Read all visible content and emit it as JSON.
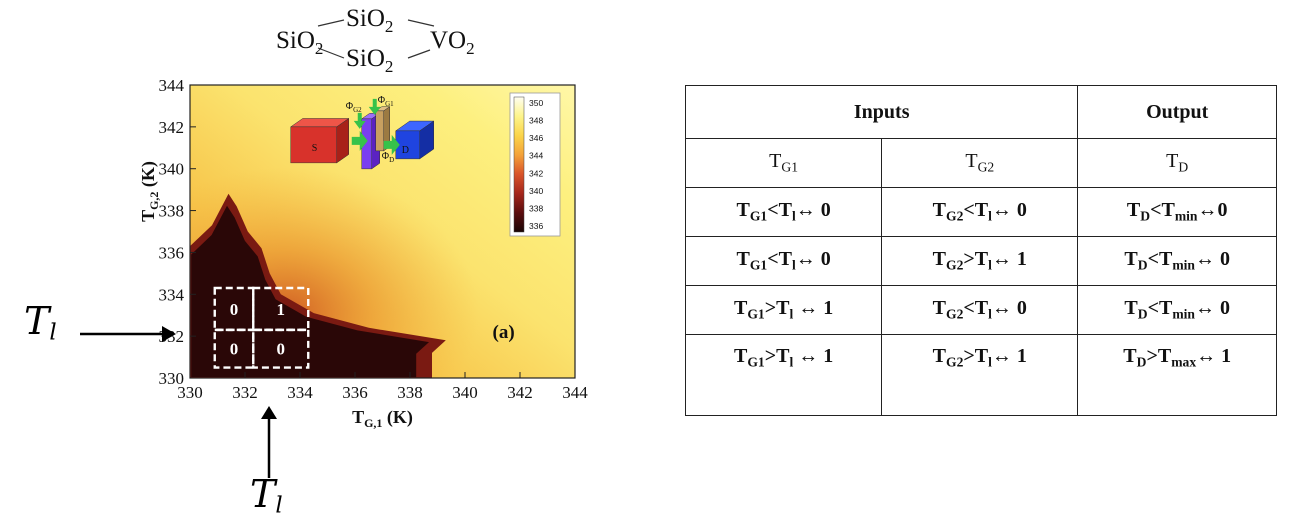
{
  "formula": {
    "top": "SiO",
    "top_sub": "2",
    "left": "SiO",
    "left_sub": "2",
    "bottom": "SiO",
    "bottom_sub": "2",
    "right": "VO",
    "right_sub": "2"
  },
  "chart_data": {
    "type": "heatmap",
    "xlabel": "T",
    "xlabel_sub": "G,1",
    "xlabel_unit": " (K)",
    "ylabel": "T",
    "ylabel_sub": "G,2",
    "ylabel_unit": " (K)",
    "xlim": [
      330,
      344
    ],
    "ylim": [
      330,
      344
    ],
    "x_ticks": [
      "330",
      "332",
      "334",
      "336",
      "338",
      "340",
      "342",
      "344"
    ],
    "y_ticks": [
      "330",
      "332",
      "334",
      "336",
      "338",
      "340",
      "342",
      "344"
    ],
    "panel_label": "(a)",
    "colorbar": {
      "ticks": [
        "350",
        "348",
        "346",
        "344",
        "342",
        "340",
        "338",
        "336"
      ],
      "colors": [
        "#fffef2",
        "#fdf48a",
        "#fbd44a",
        "#f4a23a",
        "#d9542a",
        "#a5261c",
        "#5b0d0e",
        "#190404"
      ]
    },
    "low_region": [
      [
        330,
        330
      ],
      [
        338.8,
        330
      ],
      [
        338.8,
        331.2
      ],
      [
        339.3,
        331.8
      ],
      [
        336.5,
        332.4
      ],
      [
        334.5,
        333.1
      ],
      [
        333.3,
        334.0
      ],
      [
        332.9,
        335.0
      ],
      [
        332.6,
        336.2
      ],
      [
        332.1,
        337.0
      ],
      [
        331.7,
        338.2
      ],
      [
        331.4,
        338.8
      ],
      [
        330.8,
        337.3
      ],
      [
        330,
        336.3
      ]
    ],
    "gates": [
      {
        "x": [
          330.9,
          332.3
        ],
        "y": [
          332.3,
          334.3
        ],
        "value": "0"
      },
      {
        "x": [
          332.3,
          334.3
        ],
        "y": [
          332.3,
          334.3
        ],
        "value": "1"
      },
      {
        "x": [
          330.9,
          332.3
        ],
        "y": [
          330.5,
          332.3
        ],
        "value": "0"
      },
      {
        "x": [
          332.3,
          334.3
        ],
        "y": [
          330.5,
          332.3
        ],
        "value": "0"
      }
    ],
    "inset": {
      "source": "S",
      "drain": "D",
      "gate1_label": "Φ",
      "gate1_sub": "G1",
      "gate2_label": "Φ",
      "gate2_sub": "G2",
      "drain_flux_label": "Φ",
      "drain_flux_sub": "D"
    }
  },
  "annotations": {
    "tl_left": "T",
    "tl_left_sub": "l",
    "tl_bottom": "T",
    "tl_bottom_sub": "l"
  },
  "truth_table": {
    "header_inputs": "Inputs",
    "header_output": "Output",
    "columns": [
      {
        "main": "T",
        "sub": "G1"
      },
      {
        "main": "T",
        "sub": "G2"
      },
      {
        "main": "T",
        "sub": "D"
      }
    ],
    "rows": [
      [
        {
          "a": "T",
          "a_sub": "G1",
          "mid": "<T",
          "mid_sub": "l",
          "tail": "↔ 0"
        },
        {
          "a": "T",
          "a_sub": "G2",
          "mid": "<T",
          "mid_sub": "l",
          "tail": "↔ 0"
        },
        {
          "a": "T",
          "a_sub": "D",
          "mid": "<T",
          "mid_sub": "min",
          "tail": "↔0"
        }
      ],
      [
        {
          "a": "T",
          "a_sub": "G1",
          "mid": "<T",
          "mid_sub": "l",
          "tail": "↔ 0"
        },
        {
          "a": "T",
          "a_sub": "G2",
          "mid": ">T",
          "mid_sub": "l",
          "tail": "↔ 1"
        },
        {
          "a": "T",
          "a_sub": "D",
          "mid": "<T",
          "mid_sub": "min",
          "tail": "↔ 0"
        }
      ],
      [
        {
          "a": "T",
          "a_sub": "G1",
          "mid": ">T",
          "mid_sub": "l",
          "tail": " ↔ 1"
        },
        {
          "a": "T",
          "a_sub": "G2",
          "mid": "<T",
          "mid_sub": "l",
          "tail": "↔ 0"
        },
        {
          "a": "T",
          "a_sub": "D",
          "mid": "<T",
          "mid_sub": "min",
          "tail": "↔ 0"
        }
      ],
      [
        {
          "a": "T",
          "a_sub": "G1",
          "mid": ">T",
          "mid_sub": "l",
          "tail": " ↔ 1"
        },
        {
          "a": "T",
          "a_sub": "G2",
          "mid": ">T",
          "mid_sub": "l",
          "tail": "↔ 1"
        },
        {
          "a": "T",
          "a_sub": "D",
          "mid": ">T",
          "mid_sub": "max",
          "tail": "↔ 1"
        }
      ]
    ]
  }
}
